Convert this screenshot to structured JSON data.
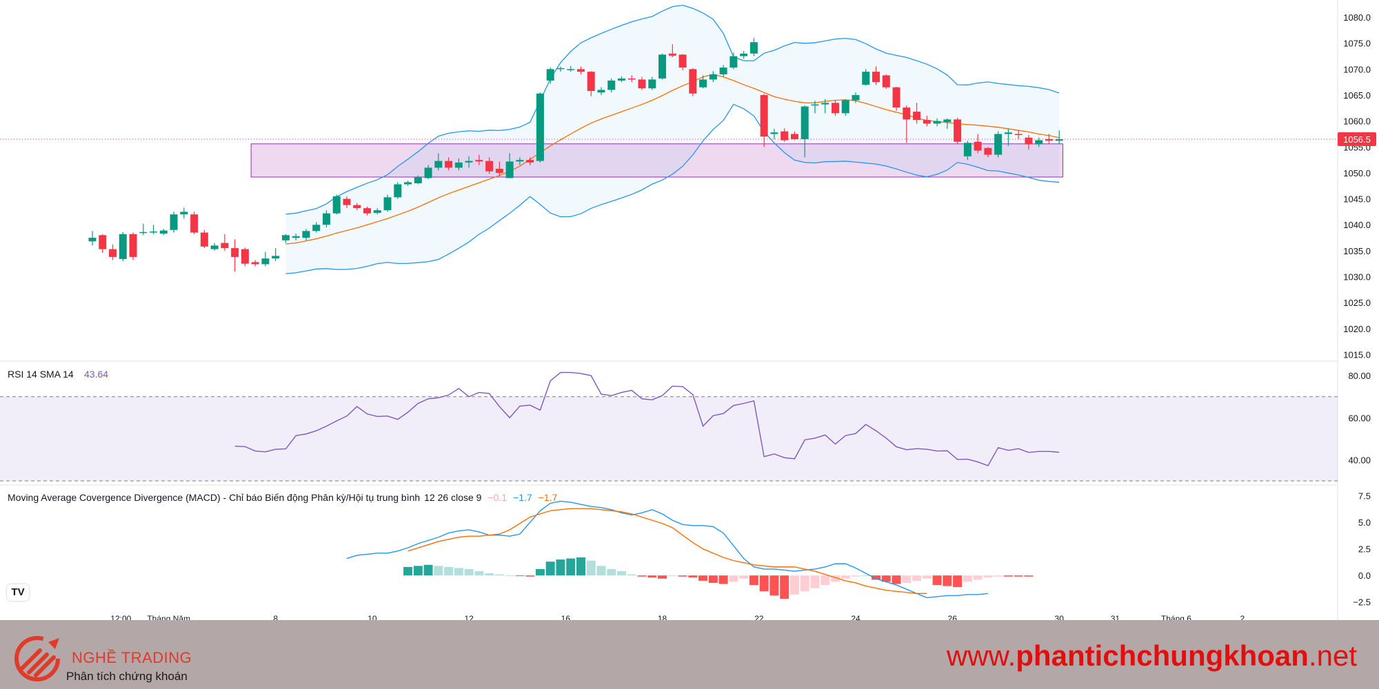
{
  "chart_data": {
    "type": "candlestick",
    "main": {
      "y_ticks": [
        "1080.0",
        "1075.0",
        "1070.0",
        "1065.0",
        "1060.0",
        "1055.0",
        "1050.0",
        "1045.0",
        "1040.0",
        "1035.0",
        "1030.0",
        "1025.0",
        "1020.0",
        "1015.0"
      ],
      "ylim": [
        1014,
        1082
      ],
      "last_price": "1056.5",
      "last_price_color": "#f23645",
      "up_color": "#089981",
      "down_color": "#f23645",
      "zone": {
        "y_low": 1049.2,
        "y_high": 1055.6,
        "from_index": 16,
        "to_index": 44
      },
      "candles": [
        {
          "o": 1036.8,
          "h": 1038.8,
          "l": 1036.0,
          "c": 1037.5
        },
        {
          "o": 1038.0,
          "h": 1038.2,
          "l": 1034.6,
          "c": 1035.3
        },
        {
          "o": 1035.3,
          "h": 1036.2,
          "l": 1033.2,
          "c": 1033.8
        },
        {
          "o": 1033.4,
          "h": 1038.6,
          "l": 1033.0,
          "c": 1038.2
        },
        {
          "o": 1038.2,
          "h": 1038.5,
          "l": 1033.2,
          "c": 1033.8
        },
        {
          "o": 1038.5,
          "h": 1040.2,
          "l": 1038.0,
          "c": 1038.6
        },
        {
          "o": 1038.6,
          "h": 1040.0,
          "l": 1038.2,
          "c": 1038.7
        },
        {
          "o": 1038.3,
          "h": 1039.2,
          "l": 1038.0,
          "c": 1038.9
        },
        {
          "o": 1039.0,
          "h": 1042.5,
          "l": 1038.5,
          "c": 1042.0
        },
        {
          "o": 1042.0,
          "h": 1043.3,
          "l": 1041.2,
          "c": 1042.5
        },
        {
          "o": 1042.0,
          "h": 1042.5,
          "l": 1038.2,
          "c": 1038.5
        },
        {
          "o": 1038.5,
          "h": 1039.0,
          "l": 1035.5,
          "c": 1035.8
        },
        {
          "o": 1035.3,
          "h": 1036.5,
          "l": 1035.0,
          "c": 1036.0
        },
        {
          "o": 1036.5,
          "h": 1038.2,
          "l": 1035.0,
          "c": 1035.5
        },
        {
          "o": 1035.5,
          "h": 1037.2,
          "l": 1031.0,
          "c": 1033.8
        },
        {
          "o": 1035.3,
          "h": 1035.6,
          "l": 1032.0,
          "c": 1032.5
        },
        {
          "o": 1032.8,
          "h": 1033.2,
          "l": 1032.0,
          "c": 1032.4
        },
        {
          "o": 1032.4,
          "h": 1034.8,
          "l": 1032.0,
          "c": 1033.5
        },
        {
          "o": 1033.5,
          "h": 1035.5,
          "l": 1033.0,
          "c": 1034.0
        },
        {
          "o": 1037.0,
          "h": 1038.2,
          "l": 1036.5,
          "c": 1038.0
        },
        {
          "o": 1037.5,
          "h": 1038.3,
          "l": 1037.0,
          "c": 1037.8
        },
        {
          "o": 1037.5,
          "h": 1039.2,
          "l": 1037.0,
          "c": 1038.8
        },
        {
          "o": 1038.8,
          "h": 1040.5,
          "l": 1038.5,
          "c": 1040.0
        },
        {
          "o": 1040.0,
          "h": 1042.8,
          "l": 1039.5,
          "c": 1042.2
        },
        {
          "o": 1042.2,
          "h": 1045.8,
          "l": 1042.0,
          "c": 1045.5
        },
        {
          "o": 1045.0,
          "h": 1045.5,
          "l": 1043.2,
          "c": 1043.8
        },
        {
          "o": 1043.8,
          "h": 1044.2,
          "l": 1042.8,
          "c": 1043.2
        },
        {
          "o": 1043.2,
          "h": 1043.5,
          "l": 1041.8,
          "c": 1042.2
        },
        {
          "o": 1042.3,
          "h": 1043.2,
          "l": 1042.0,
          "c": 1042.8
        },
        {
          "o": 1042.8,
          "h": 1045.8,
          "l": 1042.5,
          "c": 1045.3
        },
        {
          "o": 1045.3,
          "h": 1048.2,
          "l": 1045.0,
          "c": 1047.8
        },
        {
          "o": 1047.8,
          "h": 1048.5,
          "l": 1047.5,
          "c": 1048.2
        },
        {
          "o": 1048.0,
          "h": 1049.5,
          "l": 1047.8,
          "c": 1049.2
        },
        {
          "o": 1049.0,
          "h": 1051.5,
          "l": 1048.8,
          "c": 1051.0
        },
        {
          "o": 1051.0,
          "h": 1053.8,
          "l": 1050.5,
          "c": 1052.3
        },
        {
          "o": 1052.3,
          "h": 1053.0,
          "l": 1050.5,
          "c": 1051.0
        },
        {
          "o": 1051.0,
          "h": 1052.8,
          "l": 1050.5,
          "c": 1052.0
        },
        {
          "o": 1052.0,
          "h": 1053.2,
          "l": 1051.0,
          "c": 1052.3
        },
        {
          "o": 1052.5,
          "h": 1053.5,
          "l": 1051.5,
          "c": 1052.2
        },
        {
          "o": 1052.3,
          "h": 1053.0,
          "l": 1049.8,
          "c": 1050.3
        },
        {
          "o": 1050.8,
          "h": 1052.2,
          "l": 1049.5,
          "c": 1050.0
        },
        {
          "o": 1049.0,
          "h": 1053.8,
          "l": 1049.0,
          "c": 1052.2
        },
        {
          "o": 1052.2,
          "h": 1053.0,
          "l": 1051.5,
          "c": 1052.5
        },
        {
          "o": 1052.5,
          "h": 1053.0,
          "l": 1051.5,
          "c": 1052.0
        },
        {
          "o": 1052.3,
          "h": 1065.5,
          "l": 1052.0,
          "c": 1065.3
        },
        {
          "o": 1067.8,
          "h": 1070.3,
          "l": 1067.2,
          "c": 1070.0
        },
        {
          "o": 1070.0,
          "h": 1070.5,
          "l": 1069.5,
          "c": 1070.2
        },
        {
          "o": 1070.0,
          "h": 1070.6,
          "l": 1069.5,
          "c": 1070.0
        },
        {
          "o": 1070.0,
          "h": 1070.5,
          "l": 1069.0,
          "c": 1069.5
        },
        {
          "o": 1069.5,
          "h": 1069.6,
          "l": 1064.8,
          "c": 1065.8
        },
        {
          "o": 1065.5,
          "h": 1066.5,
          "l": 1065.0,
          "c": 1066.0
        },
        {
          "o": 1066.0,
          "h": 1068.2,
          "l": 1065.5,
          "c": 1067.8
        },
        {
          "o": 1067.8,
          "h": 1068.6,
          "l": 1067.5,
          "c": 1068.2
        },
        {
          "o": 1068.2,
          "h": 1068.8,
          "l": 1067.5,
          "c": 1068.0
        },
        {
          "o": 1068.0,
          "h": 1068.5,
          "l": 1066.0,
          "c": 1066.3
        },
        {
          "o": 1066.3,
          "h": 1068.5,
          "l": 1066.0,
          "c": 1068.0
        },
        {
          "o": 1068.2,
          "h": 1073.0,
          "l": 1068.0,
          "c": 1072.8
        },
        {
          "o": 1073.0,
          "h": 1074.8,
          "l": 1072.3,
          "c": 1072.6
        },
        {
          "o": 1072.8,
          "h": 1072.9,
          "l": 1069.8,
          "c": 1070.3
        },
        {
          "o": 1070.0,
          "h": 1070.2,
          "l": 1064.8,
          "c": 1065.3
        },
        {
          "o": 1066.5,
          "h": 1068.8,
          "l": 1066.3,
          "c": 1068.0
        },
        {
          "o": 1068.0,
          "h": 1069.6,
          "l": 1067.5,
          "c": 1069.0
        },
        {
          "o": 1069.0,
          "h": 1070.8,
          "l": 1068.5,
          "c": 1070.3
        },
        {
          "o": 1070.3,
          "h": 1073.2,
          "l": 1070.0,
          "c": 1072.5
        },
        {
          "o": 1072.5,
          "h": 1073.5,
          "l": 1072.0,
          "c": 1073.0
        },
        {
          "o": 1073.0,
          "h": 1076.0,
          "l": 1072.5,
          "c": 1075.2
        },
        {
          "o": 1065.0,
          "h": 1065.2,
          "l": 1055.0,
          "c": 1057.0
        },
        {
          "o": 1057.5,
          "h": 1058.5,
          "l": 1056.5,
          "c": 1057.8
        },
        {
          "o": 1058.0,
          "h": 1058.6,
          "l": 1056.0,
          "c": 1056.3
        },
        {
          "o": 1057.5,
          "h": 1058.0,
          "l": 1056.3,
          "c": 1056.5
        },
        {
          "o": 1056.5,
          "h": 1063.0,
          "l": 1053.0,
          "c": 1062.8
        },
        {
          "o": 1063.0,
          "h": 1063.9,
          "l": 1061.5,
          "c": 1063.2
        },
        {
          "o": 1063.2,
          "h": 1064.2,
          "l": 1061.5,
          "c": 1063.5
        },
        {
          "o": 1063.5,
          "h": 1064.0,
          "l": 1061.0,
          "c": 1061.5
        },
        {
          "o": 1061.5,
          "h": 1064.2,
          "l": 1061.0,
          "c": 1064.0
        },
        {
          "o": 1064.0,
          "h": 1065.5,
          "l": 1063.5,
          "c": 1065.0
        },
        {
          "o": 1067.0,
          "h": 1070.0,
          "l": 1066.8,
          "c": 1069.5
        },
        {
          "o": 1069.5,
          "h": 1070.5,
          "l": 1067.0,
          "c": 1067.5
        },
        {
          "o": 1068.8,
          "h": 1069.0,
          "l": 1066.2,
          "c": 1066.5
        },
        {
          "o": 1066.5,
          "h": 1066.6,
          "l": 1062.0,
          "c": 1062.6
        },
        {
          "o": 1062.6,
          "h": 1063.0,
          "l": 1055.8,
          "c": 1060.3
        },
        {
          "o": 1061.8,
          "h": 1063.5,
          "l": 1059.5,
          "c": 1060.2
        },
        {
          "o": 1060.2,
          "h": 1061.0,
          "l": 1059.0,
          "c": 1059.5
        },
        {
          "o": 1059.5,
          "h": 1060.5,
          "l": 1059.0,
          "c": 1060.0
        },
        {
          "o": 1059.8,
          "h": 1060.5,
          "l": 1058.5,
          "c": 1060.3
        },
        {
          "o": 1060.3,
          "h": 1060.6,
          "l": 1055.6,
          "c": 1056.0
        },
        {
          "o": 1053.2,
          "h": 1056.2,
          "l": 1052.5,
          "c": 1055.8
        },
        {
          "o": 1056.0,
          "h": 1057.5,
          "l": 1053.8,
          "c": 1054.3
        },
        {
          "o": 1054.8,
          "h": 1055.0,
          "l": 1053.0,
          "c": 1053.5
        },
        {
          "o": 1053.5,
          "h": 1058.0,
          "l": 1053.0,
          "c": 1057.5
        },
        {
          "o": 1057.5,
          "h": 1058.5,
          "l": 1055.2,
          "c": 1057.8
        },
        {
          "o": 1057.5,
          "h": 1058.2,
          "l": 1056.5,
          "c": 1057.3
        },
        {
          "o": 1056.8,
          "h": 1057.3,
          "l": 1054.5,
          "c": 1055.5
        },
        {
          "o": 1055.5,
          "h": 1056.8,
          "l": 1055.0,
          "c": 1056.3
        },
        {
          "o": 1056.5,
          "h": 1057.5,
          "l": 1055.5,
          "c": 1056.2
        },
        {
          "o": 1056.2,
          "h": 1058.2,
          "l": 1055.5,
          "c": 1056.5
        }
      ],
      "bb_start_index": 19,
      "basis": [
        1036.3,
        1036.5,
        1036.9,
        1037.3,
        1037.8,
        1038.4,
        1038.9,
        1039.4,
        1040.0,
        1040.6,
        1041.2,
        1041.9,
        1042.6,
        1043.4,
        1044.3,
        1045.2,
        1046.0,
        1046.7,
        1047.4,
        1048.1,
        1048.8,
        1049.5,
        1050.3,
        1051.3,
        1052.6,
        1053.9,
        1055.2,
        1056.4,
        1057.5,
        1058.6,
        1059.6,
        1060.4,
        1061.1,
        1061.8,
        1062.5,
        1063.2,
        1064.0,
        1064.9,
        1065.9,
        1066.8,
        1067.6,
        1068.5,
        1069.0,
        1068.5,
        1067.8,
        1067.0,
        1066.3,
        1065.5,
        1064.7,
        1064.2,
        1063.8,
        1063.5,
        1063.5,
        1063.8,
        1064.0,
        1064.1,
        1063.9,
        1063.4,
        1062.8,
        1062.2,
        1061.7,
        1061.2,
        1060.6,
        1060.1,
        1059.9,
        1059.7,
        1059.5,
        1059.3,
        1059.2,
        1059.0,
        1058.8,
        1058.5,
        1058.2,
        1057.9,
        1057.5,
        1057.2,
        1056.8
      ]
    },
    "rsi": {
      "label": "RSI 14 SMA 14",
      "value_label": "43.64",
      "y_ticks": [
        "80.00",
        "60.00",
        "40.00"
      ],
      "ylim": [
        29,
        83
      ],
      "upper_band": 70,
      "lower_band": 30,
      "start_index": 14,
      "values": [
        46.5,
        46.3,
        44.2,
        43.8,
        45.0,
        45.2,
        51.5,
        52.3,
        53.8,
        56.0,
        58.5,
        60.8,
        65.3,
        61.8,
        60.6,
        60.8,
        59.2,
        62.6,
        66.8,
        69.0,
        69.5,
        70.8,
        73.9,
        70.0,
        72.0,
        71.5,
        65.3,
        60.0,
        65.5,
        66.0,
        63.6,
        77.5,
        81.5,
        81.5,
        81.0,
        80.0,
        71.2,
        70.5,
        72.0,
        73.0,
        69.0,
        68.5,
        70.5,
        75.0,
        74.8,
        71.0,
        56.0,
        61.0,
        62.0,
        65.8,
        66.8,
        68.0,
        41.5,
        42.8,
        41.0,
        40.5,
        49.5,
        50.3,
        51.8,
        47.5,
        51.5,
        52.5,
        56.8,
        53.8,
        50.3,
        46.2,
        44.8,
        45.3,
        45.0,
        44.2,
        44.3,
        40.2,
        40.3,
        39.0,
        37.2,
        45.8,
        44.5,
        45.3,
        43.5,
        44.0,
        44.0,
        43.6
      ]
    },
    "macd": {
      "label": "Moving Average Covergence Divergence (MACD) - Chỉ báo Biến động Phân kỳ/Hội tụ trung bình",
      "params": "12 26 close 9",
      "values": [
        "−0.1",
        "−1.7",
        "−1.7"
      ],
      "value_colors": [
        "#f7a9a7",
        "#2196f3",
        "#ff6d00"
      ],
      "y_ticks": [
        "7.5",
        "5.0",
        "2.5",
        "0.0",
        "−2.5"
      ],
      "ylim": [
        -3.3,
        8.0
      ],
      "macd_start_index": 25,
      "macd": [
        1.6,
        1.9,
        2.0,
        2.1,
        2.1,
        2.3,
        2.6,
        3.0,
        3.3,
        3.6,
        4.0,
        4.2,
        4.3,
        4.1,
        3.8,
        3.8,
        3.7,
        3.9,
        5.0,
        6.1,
        6.8,
        7.0,
        6.9,
        6.7,
        6.5,
        6.4,
        6.2,
        5.9,
        5.7,
        5.9,
        6.2,
        5.8,
        5.2,
        4.8,
        4.7,
        4.7,
        4.6,
        4.0,
        2.8,
        1.6,
        0.8,
        0.6,
        0.6,
        0.5,
        0.4,
        0.5,
        0.6,
        0.8,
        1.1,
        1.1,
        0.7,
        0.2,
        -0.3,
        -0.6,
        -0.9,
        -1.3,
        -1.7,
        -2.1,
        -2.0,
        -1.9,
        -1.9,
        -1.8,
        -1.8,
        -1.7
      ],
      "signal_start_index": 31,
      "signal": [
        2.3,
        2.6,
        2.9,
        3.2,
        3.4,
        3.6,
        3.7,
        3.7,
        3.8,
        3.9,
        4.3,
        4.9,
        5.5,
        5.8,
        6.1,
        6.2,
        6.3,
        6.3,
        6.3,
        6.2,
        6.1,
        6.0,
        5.8,
        5.5,
        5.2,
        4.9,
        4.5,
        3.8,
        3.1,
        2.5,
        2.1,
        1.7,
        1.4,
        1.2,
        1.0,
        0.9,
        0.8,
        0.8,
        0.8,
        0.6,
        0.4,
        0.1,
        -0.2,
        -0.5,
        -0.7,
        -1.0,
        -1.2,
        -1.4,
        -1.5,
        -1.6,
        -1.7,
        -1.7
      ],
      "hist_start_index": 31,
      "hist": [
        0.8,
        0.9,
        1.0,
        0.9,
        0.8,
        0.7,
        0.6,
        0.4,
        0.2,
        0.1,
        0.0,
        0.0,
        -0.1,
        0.6,
        1.3,
        1.5,
        1.6,
        1.7,
        1.4,
        0.9,
        0.6,
        0.4,
        0.1,
        -0.1,
        -0.2,
        -0.3,
        0.0,
        -0.1,
        -0.2,
        -0.5,
        -0.7,
        -0.8,
        -0.6,
        -0.3,
        -0.9,
        -1.5,
        -1.9,
        -2.2,
        -1.8,
        -1.5,
        -1.2,
        -0.9,
        -0.6,
        -0.3,
        -0.1,
        0.0,
        -0.4,
        -0.6,
        -0.8,
        -0.7,
        -0.5,
        -0.3,
        -0.9,
        -1.0,
        -1.1,
        -0.6,
        -0.4,
        -0.2,
        -0.1,
        -0.1,
        -0.1,
        -0.1
      ]
    },
    "x_ticks": [
      {
        "index": 2.8,
        "label": "12:00"
      },
      {
        "index": 7.5,
        "label": "Tháng Năm"
      },
      {
        "index": 18,
        "label": "8"
      },
      {
        "index": 27.5,
        "label": "10"
      },
      {
        "index": 37,
        "label": "12"
      },
      {
        "index": 46.5,
        "label": "16"
      },
      {
        "index": 56,
        "label": "18"
      },
      {
        "index": 65.5,
        "label": "22"
      },
      {
        "index": 75,
        "label": "24"
      },
      {
        "index": 84.5,
        "label": "26"
      },
      {
        "index": 95,
        "label": "30"
      },
      {
        "index": 100.5,
        "label": "31"
      },
      {
        "index": 106.5,
        "label": "Tháng 6"
      },
      {
        "index": 113,
        "label": "2"
      }
    ]
  },
  "footer": {
    "brand": "NGHỀ TRADING",
    "brand_sub": "Phân tích chứng khoán",
    "site_prefix": "www.",
    "site_bold": "phantichchungkhoan",
    "site_suffix": ".net"
  },
  "tv_logo_text": "TV"
}
